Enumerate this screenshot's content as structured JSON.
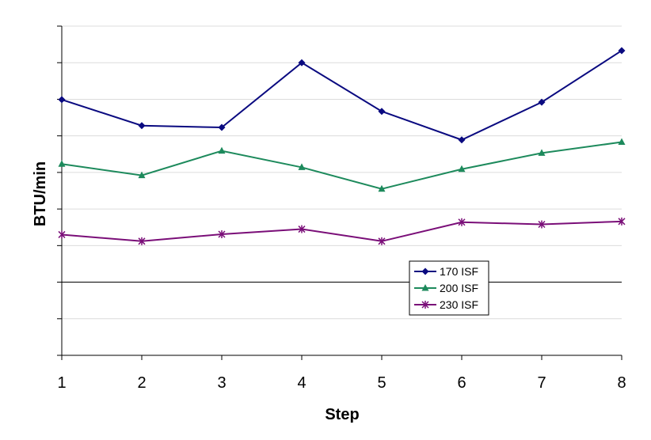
{
  "chart_data": {
    "type": "line",
    "x": [
      1,
      2,
      3,
      4,
      5,
      6,
      7,
      8
    ],
    "tick_labels": [
      "1",
      "2",
      "3",
      "4",
      "5",
      "6",
      "7",
      "8"
    ],
    "xlabel": "Step",
    "ylabel": "BTU/min",
    "ylim": [
      -2,
      7
    ],
    "y_tick_count": 9,
    "y_tick_labels_shown": false,
    "grid": "horizontal",
    "legend_position": "lower-right",
    "series": [
      {
        "name": "170 ISF",
        "color": "#0a0a80",
        "marker": "diamond",
        "values": [
          4.99,
          4.28,
          4.23,
          6.0,
          4.67,
          3.89,
          4.92,
          6.33
        ]
      },
      {
        "name": "200 ISF",
        "color": "#1d8a5c",
        "marker": "triangle",
        "values": [
          3.23,
          2.92,
          3.59,
          3.14,
          2.55,
          3.09,
          3.53,
          3.83
        ]
      },
      {
        "name": "230 ISF",
        "color": "#7a0e78",
        "marker": "star",
        "values": [
          1.3,
          1.12,
          1.31,
          1.45,
          1.12,
          1.64,
          1.58,
          1.66
        ]
      }
    ]
  }
}
